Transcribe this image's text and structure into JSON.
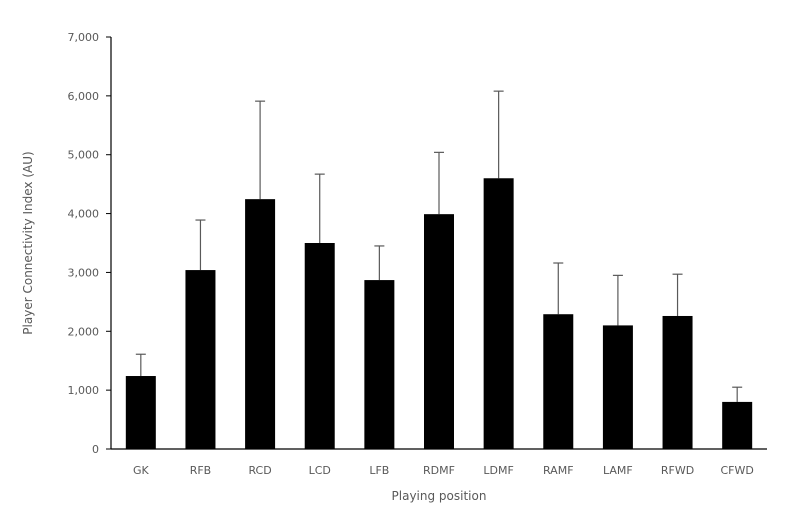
{
  "chart_data": {
    "type": "bar",
    "title": "",
    "xlabel": "Playing position",
    "ylabel": "Player Connectivity Index (AU)",
    "ylim": [
      0,
      7000
    ],
    "yticks": [
      0,
      1000,
      2000,
      3000,
      4000,
      5000,
      6000,
      7000
    ],
    "ytick_labels": [
      "0",
      "1,000",
      "2,000",
      "3,000",
      "4,000",
      "5,000",
      "6,000",
      "7,000"
    ],
    "categories": [
      "GK",
      "RFB",
      "RCD",
      "LCD",
      "LFB",
      "RDMF",
      "LDMF",
      "RAMF",
      "LAMF",
      "RFWD",
      "CFWD"
    ],
    "values": [
      1240,
      3040,
      4245,
      3500,
      2870,
      3990,
      4600,
      2290,
      2100,
      2260,
      800
    ],
    "error_upper": [
      370,
      850,
      1665,
      1170,
      580,
      1050,
      1480,
      870,
      850,
      710,
      250
    ],
    "bar_color": "#000000",
    "error_color": "#595959",
    "grid": false,
    "legend": "none"
  }
}
